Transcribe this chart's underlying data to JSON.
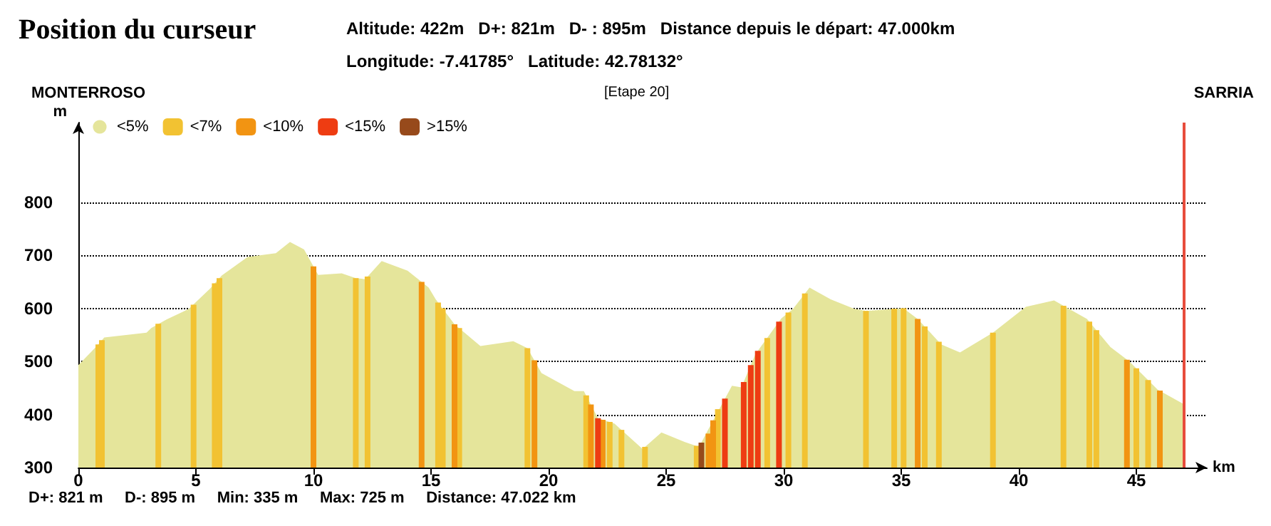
{
  "chart_data": {
    "type": "area",
    "title": "Position du curseur",
    "xlabel": "km",
    "ylabel": "m",
    "annotations": [
      "Altitude: 422m   D+: 821m   D- : 895m   Distance depuis le départ: 47.000km",
      "Longitude: -7.41785°   Latitude: 42.78132°",
      "MONTERROSO",
      "[Etape 20]",
      "SARRIA",
      "D+: 821 m     D-: 895 m     Min: 335 m     Max: 725 m     Distance: 47.022 km"
    ],
    "xlim": [
      0,
      48
    ],
    "xticks": [
      0,
      5,
      10,
      15,
      20,
      25,
      30,
      35,
      40,
      45
    ],
    "ylim": [
      300,
      950
    ],
    "yticks": [
      300,
      400,
      500,
      600,
      700,
      800
    ],
    "grid": "y",
    "legend": "top left",
    "ref_lines": [
      {
        "axis": "x",
        "value": 47,
        "color": "#e74c3c"
      }
    ],
    "series": [
      {
        "name": "<5%",
        "color": "#e5e59b",
        "x": [
          0,
          0.85,
          1.1,
          2.9,
          3.1,
          3.75,
          4.7,
          5.6,
          6.1,
          7.2,
          8.4,
          9.0,
          9.6,
          10.2,
          11.2,
          11.8,
          12.2,
          12.9,
          14.0,
          14.4,
          14.9,
          15.2,
          16.0,
          17.1,
          18.5,
          19.1,
          19.7,
          21.1,
          21.5,
          22.1,
          22.8,
          24.0,
          24.8,
          25.8,
          26.4,
          27.0,
          27.8,
          28.2,
          28.8,
          29.9,
          30.4,
          31.1,
          32.0,
          33.0,
          33.5,
          35.1,
          35.7,
          36.7,
          37.5,
          38.9,
          40.3,
          41.5,
          42.9,
          43.9,
          44.7,
          45.9,
          47.0
        ],
        "values": [
          493,
          532,
          545,
          554,
          563,
          579,
          599,
          637,
          662,
          697,
          704,
          725,
          711,
          663,
          666,
          657,
          655,
          689,
          671,
          657,
          639,
          617,
          570,
          529,
          538,
          525,
          478,
          444,
          444,
          393,
          383,
          335,
          366,
          348,
          339,
          389,
          454,
          451,
          514,
          581,
          599,
          639,
          617,
          599,
          595,
          600,
          580,
          532,
          517,
          554,
          603,
          615,
          580,
          527,
          500,
          447,
          420
        ]
      },
      {
        "name": "<7%",
        "type": "bar",
        "color": "#f2c232",
        "x": [
          0.85,
          1.0,
          3.4,
          4.9,
          5.8,
          6.0,
          11.8,
          12.3,
          15.3,
          15.5,
          16.2,
          19.1,
          21.6,
          22.6,
          23.1,
          24.1,
          26.3,
          27.2,
          29.3,
          30.2,
          30.9,
          33.5,
          34.7,
          35.1,
          36.0,
          36.6,
          38.9,
          41.9,
          43.0,
          43.3,
          45.0,
          45.5
        ],
        "values": [
          532,
          540,
          571,
          607,
          647,
          657,
          657,
          660,
          611,
          600,
          563,
          525,
          436,
          386,
          371,
          339,
          341,
          410,
          544,
          592,
          628,
          595,
          599,
          600,
          566,
          537,
          554,
          605,
          575,
          559,
          487,
          465
        ]
      },
      {
        "name": "<10%",
        "type": "bar",
        "color": "#f29412",
        "x": [
          10.0,
          14.6,
          16.0,
          19.4,
          21.8,
          22.3,
          26.8,
          27.0,
          35.7,
          44.6,
          46.0
        ],
        "values": [
          679,
          650,
          570,
          502,
          419,
          390,
          364,
          389,
          580,
          503,
          445
        ]
      },
      {
        "name": "<15%",
        "type": "bar",
        "color": "#ee3c12",
        "x": [
          22.1,
          27.5,
          28.3,
          28.6,
          28.9,
          29.8
        ],
        "values": [
          393,
          430,
          461,
          493,
          520,
          575
        ]
      },
      {
        "name": ">15%",
        "type": "bar",
        "color": "#974a1b",
        "x": [
          26.5
        ],
        "values": [
          347
        ]
      }
    ]
  }
}
